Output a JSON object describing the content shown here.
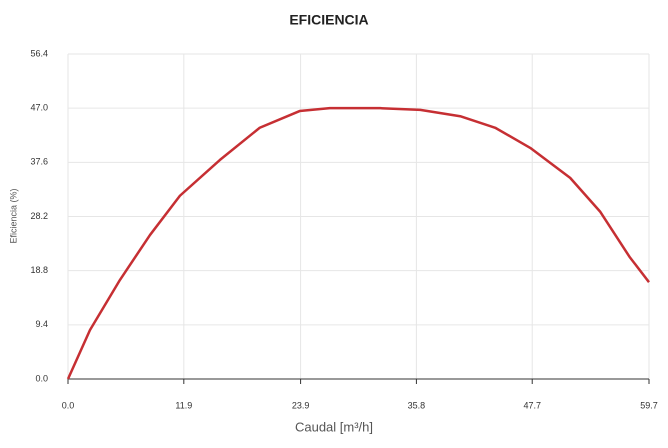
{
  "chart_data": {
    "type": "line",
    "title": "EFICIENCIA",
    "x_label": "Caudal [m³/h]",
    "y_label": "Eficiencia (%)",
    "x": [
      0,
      2.26,
      5.34,
      8.43,
      11.5,
      15.6,
      19.7,
      23.8,
      26.9,
      32.1,
      36.2,
      40.3,
      43.9,
      47.5,
      51.6,
      54.7,
      57.7,
      59.7
    ],
    "series": [
      {
        "name": "Eficiencia",
        "color": "#c62f33",
        "values": [
          0,
          8.5,
          17.2,
          25,
          31.8,
          38,
          43.6,
          46.5,
          47.0,
          47.0,
          46.7,
          45.6,
          43.6,
          40.1,
          34.9,
          29.0,
          21.2,
          16.8
        ]
      }
    ],
    "xlim": [
      0,
      59.7
    ],
    "ylim": [
      0,
      56.4
    ],
    "xticks": [
      {
        "value": 0,
        "label": "0.0"
      },
      11.9,
      23.9,
      35.8,
      47.7,
      59.7
    ],
    "yticks": [
      {
        "value": 0,
        "label": "0.0"
      },
      9.4,
      18.8,
      28.2,
      37.6,
      {
        "value": 47,
        "label": "47.0"
      },
      56.4
    ],
    "grid": true
  }
}
